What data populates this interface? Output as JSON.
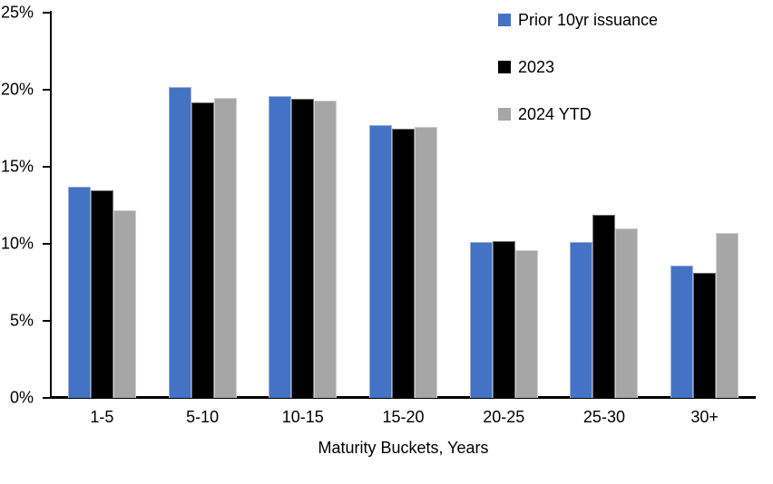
{
  "chart_data": {
    "type": "bar",
    "title": "",
    "categories": [
      "1-5",
      "5-10",
      "10-15",
      "15-20",
      "20-25",
      "25-30",
      "30+"
    ],
    "series": [
      {
        "name": "Prior 10yr issuance",
        "color": "#4472C4",
        "values": [
          13.7,
          20.2,
          19.6,
          17.7,
          10.1,
          10.1,
          8.6
        ]
      },
      {
        "name": "2023",
        "color": "#000000",
        "values": [
          13.5,
          19.2,
          19.4,
          17.5,
          10.2,
          11.9,
          8.1
        ]
      },
      {
        "name": "2024 YTD",
        "color": "#A6A6A6",
        "values": [
          12.2,
          19.5,
          19.3,
          17.6,
          9.6,
          11.0,
          10.7
        ]
      }
    ],
    "xlabel": "Maturity Buckets, Years",
    "ylabel": "",
    "ylim": [
      0,
      25
    ],
    "yticks": [
      0,
      5,
      10,
      15,
      20,
      25
    ],
    "ytick_labels": [
      "0%",
      "5%",
      "10%",
      "15%",
      "20%",
      "25%"
    ],
    "grid": false,
    "legend_position": "top-right",
    "axis_color": "#000000",
    "background_color": "#FFFFFF"
  }
}
